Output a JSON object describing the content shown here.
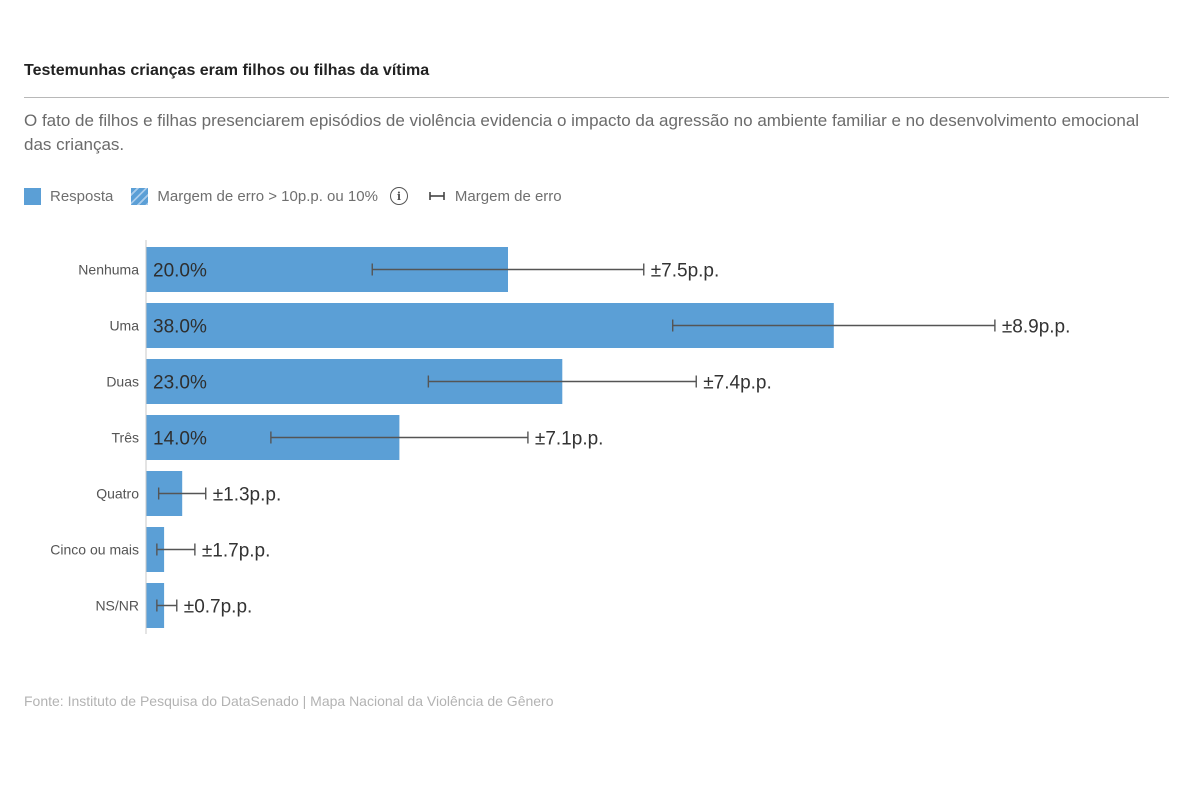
{
  "title": "Testemunhas crianças eram filhos ou filhas da vítima",
  "subtitle": "O fato de filhos e filhas presenciarem episódios de violência evidencia o impacto da agressão no ambiente familiar e no desenvolvimento emocional das crianças.",
  "legend": {
    "resposta": "Resposta",
    "margem_alta": "Margem de erro > 10p.p. ou 10%",
    "info_icon": "info-icon",
    "margem": "Margem de erro"
  },
  "source": "Fonte: Instituto de Pesquisa do DataSenado | Mapa Nacional da Violência de Gênero",
  "colors": {
    "bar": "#5b9fd6",
    "errorbar": "#555555",
    "text": "#333333"
  },
  "chart_data": {
    "type": "bar",
    "orientation": "horizontal",
    "categories": [
      "Nenhuma",
      "Uma",
      "Duas",
      "Três",
      "Quatro",
      "Cinco ou mais",
      "NS/NR"
    ],
    "values": [
      20.0,
      38.0,
      23.0,
      14.0,
      2.0,
      1.0,
      1.0
    ],
    "value_labels": [
      "20.0%",
      "38.0%",
      "23.0%",
      "14.0%",
      "",
      "",
      ""
    ],
    "errors": [
      7.5,
      8.9,
      7.4,
      7.1,
      1.3,
      1.7,
      0.7
    ],
    "error_labels": [
      "±7.5p.p.",
      "±8.9p.p.",
      "±7.4p.p.",
      "±7.1p.p.",
      "±1.3p.p.",
      "±1.7p.p.",
      "±0.7p.p."
    ],
    "xlim": [
      0,
      55
    ],
    "grid": false
  }
}
